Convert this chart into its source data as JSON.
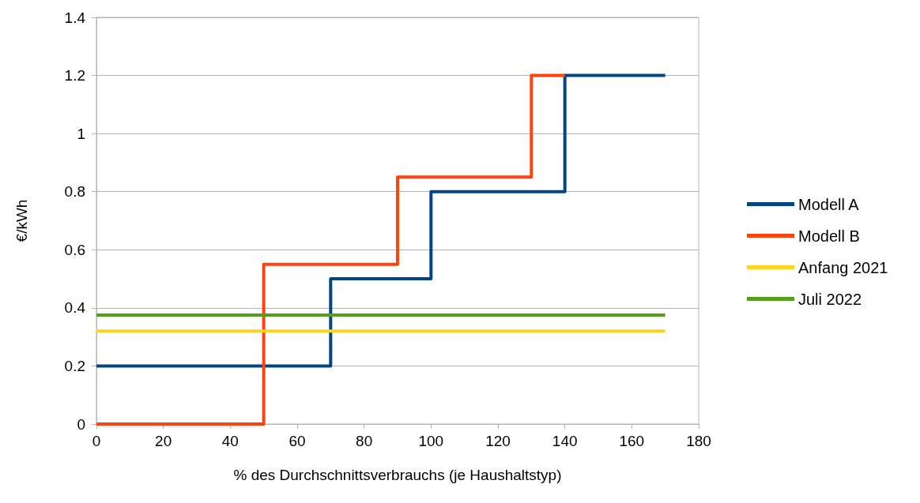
{
  "chart_data": {
    "type": "step",
    "xlabel": "% des Durchschnittsverbrauchs (je Haushaltstyp)",
    "ylabel": "€/kWh",
    "xlim": [
      0,
      180
    ],
    "xticks": [
      0,
      20,
      40,
      60,
      80,
      100,
      120,
      140,
      160,
      180
    ],
    "ylim": [
      0,
      1.4
    ],
    "yticks": [
      0,
      0.2,
      0.4,
      0.6,
      0.8,
      1,
      1.2,
      1.4
    ],
    "grid": "y",
    "legend": "right",
    "line_style": "solid",
    "marker": "none",
    "series": [
      {
        "name": "Modell A",
        "color": "#004586",
        "x": [
          0,
          70,
          100,
          140,
          170
        ],
        "values": [
          0.2,
          0.5,
          0.8,
          1.2,
          1.2
        ]
      },
      {
        "name": "Modell B",
        "color": "#ff420e",
        "x": [
          0,
          50,
          90,
          130,
          140
        ],
        "values": [
          0,
          0.55,
          0.85,
          1.2,
          1.2
        ]
      },
      {
        "name": "Anfang 2021",
        "color": "#ffd320",
        "type": "line",
        "x": [
          0,
          170
        ],
        "values": [
          0.32,
          0.32
        ]
      },
      {
        "name": "Juli 2022",
        "color": "#579d1c",
        "type": "line",
        "x": [
          0,
          170
        ],
        "values": [
          0.375,
          0.375
        ]
      }
    ]
  }
}
